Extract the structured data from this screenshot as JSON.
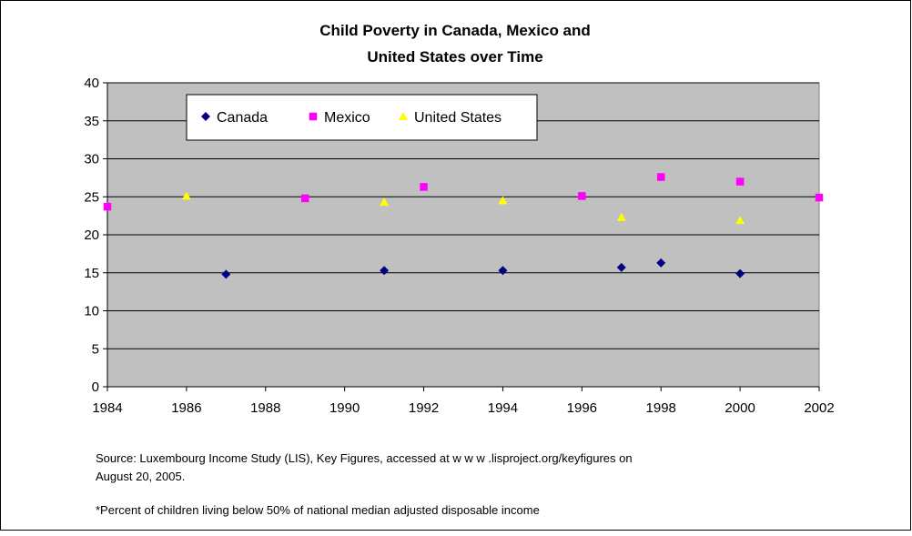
{
  "chart_data": {
    "type": "scatter",
    "title_lines": [
      "Child Poverty in Canada, Mexico and",
      "United States over Time"
    ],
    "xlabel": "",
    "ylabel": "",
    "xlim": [
      1984,
      2002
    ],
    "ylim": [
      0,
      40
    ],
    "xticks": [
      1984,
      1986,
      1988,
      1990,
      1992,
      1994,
      1996,
      1998,
      2000,
      2002
    ],
    "yticks": [
      0,
      5,
      10,
      15,
      20,
      25,
      30,
      35,
      40
    ],
    "grid": true,
    "legend_position": "top-left inside",
    "series": [
      {
        "name": "Canada",
        "marker": "diamond",
        "color": "#000080",
        "points": [
          [
            1987,
            14.8
          ],
          [
            1991,
            15.3
          ],
          [
            1994,
            15.3
          ],
          [
            1997,
            15.7
          ],
          [
            1998,
            16.3
          ],
          [
            2000,
            14.9
          ]
        ]
      },
      {
        "name": "Mexico",
        "marker": "square",
        "color": "#ff00ff",
        "points": [
          [
            1984,
            23.7
          ],
          [
            1989,
            24.8
          ],
          [
            1992,
            26.3
          ],
          [
            1996,
            25.1
          ],
          [
            1998,
            27.6
          ],
          [
            2000,
            27.0
          ],
          [
            2002,
            24.9
          ]
        ]
      },
      {
        "name": "United States",
        "marker": "triangle",
        "color": "#ffff00",
        "points": [
          [
            1986,
            25.1
          ],
          [
            1991,
            24.3
          ],
          [
            1994,
            24.5
          ],
          [
            1997,
            22.3
          ],
          [
            2000,
            21.9
          ]
        ]
      }
    ]
  },
  "notes": {
    "source_line1": "Source: Luxembourg Income Study (LIS), Key Figures, accessed at w w w .lisproject.org/keyfigures on",
    "source_line2": "August 20, 2005.",
    "footnote": "*Percent of children living below 50% of national median adjusted disposable income"
  },
  "colors": {
    "plot_background": "#c0c0c0",
    "gridline": "#000000"
  }
}
